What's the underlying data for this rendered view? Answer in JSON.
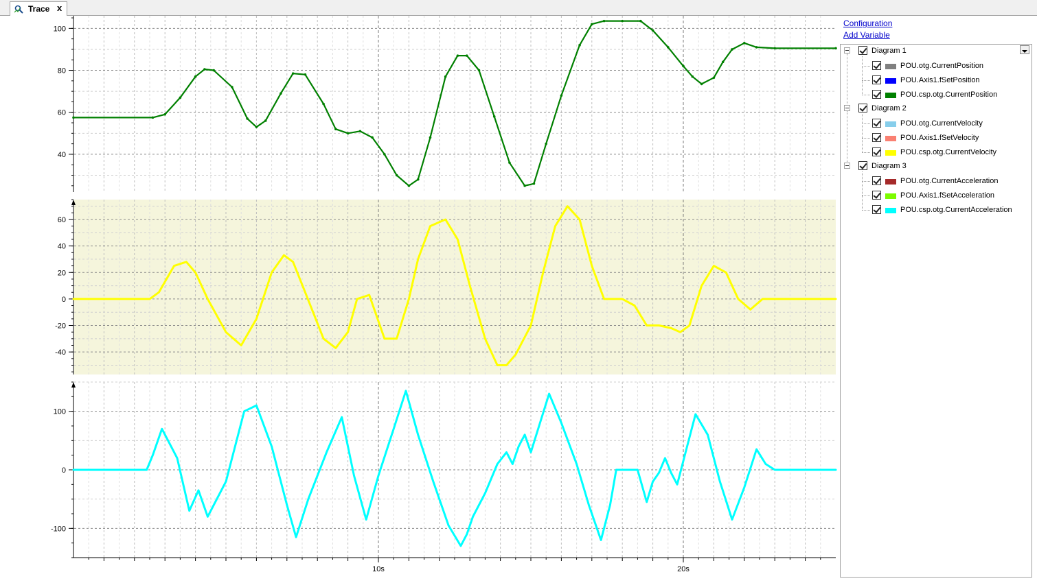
{
  "tab": {
    "label": "Trace",
    "close": "x",
    "icon": "trace-icon"
  },
  "links": {
    "configuration": "Configuration",
    "add_variable": "Add Variable"
  },
  "tree": [
    {
      "label": "Diagram 1",
      "checked": true,
      "variables": [
        {
          "label": "POU.otg.CurrentPosition",
          "color": "#808080",
          "checked": true
        },
        {
          "label": "POU.Axis1.fSetPosition",
          "color": "#0000ff",
          "checked": true
        },
        {
          "label": "POU.csp.otg.CurrentPosition",
          "color": "#008000",
          "checked": true
        }
      ]
    },
    {
      "label": "Diagram 2",
      "checked": true,
      "variables": [
        {
          "label": "POU.otg.CurrentVelocity",
          "color": "#87ceeb",
          "checked": true
        },
        {
          "label": "POU.Axis1.fSetVelocity",
          "color": "#fa8072",
          "checked": true
        },
        {
          "label": "POU.csp.otg.CurrentVelocity",
          "color": "#ffff00",
          "checked": true
        }
      ]
    },
    {
      "label": "Diagram 3",
      "checked": true,
      "variables": [
        {
          "label": "POU.otg.CurrentAcceleration",
          "color": "#a52a2a",
          "checked": true
        },
        {
          "label": "POU.Axis1.fSetAcceleration",
          "color": "#7cfc00",
          "checked": true
        },
        {
          "label": "POU.csp.otg.CurrentAcceleration",
          "color": "#00ffff",
          "checked": true
        }
      ]
    }
  ],
  "chart_data": [
    {
      "type": "line",
      "xlim": [
        0,
        25
      ],
      "ylim": [
        22,
        106
      ],
      "yticks": [
        40,
        60,
        80,
        100
      ],
      "background": "#ffffff",
      "series": [
        {
          "name": "POU.csp.otg.CurrentPosition",
          "color": "#008000",
          "x": [
            0,
            2.6,
            3.0,
            3.5,
            4.0,
            4.3,
            4.6,
            5.2,
            5.7,
            6.0,
            6.3,
            6.8,
            7.2,
            7.6,
            8.2,
            8.6,
            9.0,
            9.4,
            9.8,
            10.2,
            10.6,
            11.0,
            11.3,
            11.7,
            12.2,
            12.6,
            12.9,
            13.3,
            13.8,
            14.3,
            14.8,
            15.1,
            15.5,
            16.0,
            16.6,
            17.0,
            17.4,
            18.0,
            18.6,
            19.0,
            19.5,
            20.0,
            20.3,
            20.6,
            21.0,
            21.3,
            21.6,
            22.0,
            22.4,
            23.0,
            25.0
          ],
          "y": [
            57.5,
            57.5,
            59,
            67,
            77,
            80.5,
            80,
            72,
            57,
            53,
            56,
            69,
            78.5,
            78,
            64,
            52,
            50,
            51,
            48,
            40,
            30,
            25,
            28,
            48,
            77,
            87,
            87,
            80,
            58,
            36,
            25,
            26,
            45,
            68,
            92,
            102,
            103.5,
            103.5,
            103.5,
            99,
            91,
            82,
            77,
            73.5,
            76.5,
            84,
            90,
            93,
            91,
            90.5,
            90.5
          ]
        }
      ]
    },
    {
      "type": "line",
      "xlim": [
        0,
        25
      ],
      "ylim": [
        -57,
        75
      ],
      "yticks": [
        -40,
        -20,
        0,
        20,
        40,
        60
      ],
      "background": "#f5f5dc",
      "series": [
        {
          "name": "POU.csp.otg.CurrentVelocity",
          "color": "#ffff00",
          "x": [
            0,
            2.5,
            2.8,
            3.3,
            3.7,
            4.0,
            4.4,
            5.0,
            5.5,
            6.0,
            6.5,
            6.9,
            7.2,
            7.6,
            8.2,
            8.6,
            9.0,
            9.3,
            9.7,
            10.2,
            10.6,
            11.0,
            11.3,
            11.7,
            12.2,
            12.6,
            13.0,
            13.5,
            13.9,
            14.2,
            14.5,
            15.0,
            15.4,
            15.8,
            16.2,
            16.6,
            17.0,
            17.4,
            18.0,
            18.4,
            18.8,
            19.2,
            19.6,
            19.9,
            20.2,
            20.6,
            21.0,
            21.4,
            21.8,
            22.2,
            22.6,
            23.0,
            25.0
          ],
          "y": [
            0,
            0,
            5,
            25,
            28,
            20,
            0,
            -25,
            -35,
            -15,
            20,
            33,
            28,
            5,
            -30,
            -37,
            -25,
            0,
            3,
            -30,
            -30,
            0,
            30,
            55,
            60,
            45,
            10,
            -30,
            -50,
            -50,
            -42,
            -20,
            20,
            55,
            70,
            60,
            25,
            0,
            0,
            -5,
            -20,
            -20,
            -22,
            -25,
            -20,
            10,
            25,
            20,
            0,
            -8,
            0,
            0,
            0
          ]
        }
      ]
    },
    {
      "type": "line",
      "xlim": [
        0,
        25
      ],
      "ylim": [
        -150,
        150
      ],
      "yticks": [
        -100,
        0,
        100
      ],
      "xticks": [
        10,
        20
      ],
      "xticklabels": [
        "10s",
        "20s"
      ],
      "background": "#ffffff",
      "series": [
        {
          "name": "POU.csp.otg.CurrentAcceleration",
          "color": "#00ffff",
          "x": [
            0,
            2.4,
            2.6,
            2.9,
            3.4,
            3.8,
            4.1,
            4.4,
            5.0,
            5.6,
            6.0,
            6.5,
            7.0,
            7.3,
            7.7,
            8.3,
            8.8,
            9.2,
            9.6,
            10.0,
            10.5,
            10.9,
            11.3,
            11.8,
            12.3,
            12.7,
            12.9,
            13.1,
            13.5,
            13.9,
            14.2,
            14.4,
            14.6,
            14.8,
            15.0,
            15.3,
            15.6,
            16.0,
            16.5,
            16.9,
            17.3,
            17.6,
            17.8,
            18.2,
            18.5,
            18.8,
            19.0,
            19.2,
            19.4,
            19.6,
            19.8,
            20.1,
            20.4,
            20.8,
            21.2,
            21.6,
            22.0,
            22.4,
            22.7,
            23.0,
            25.0
          ],
          "y": [
            0,
            0,
            25,
            70,
            20,
            -70,
            -35,
            -80,
            -20,
            100,
            110,
            40,
            -60,
            -115,
            -50,
            30,
            90,
            -10,
            -85,
            -10,
            70,
            135,
            60,
            -20,
            -95,
            -130,
            -110,
            -80,
            -40,
            10,
            30,
            10,
            40,
            60,
            30,
            80,
            130,
            80,
            10,
            -60,
            -120,
            -60,
            0,
            0,
            0,
            -55,
            -20,
            -5,
            20,
            -5,
            -25,
            35,
            95,
            60,
            -20,
            -85,
            -30,
            35,
            10,
            0,
            0
          ]
        }
      ]
    }
  ]
}
